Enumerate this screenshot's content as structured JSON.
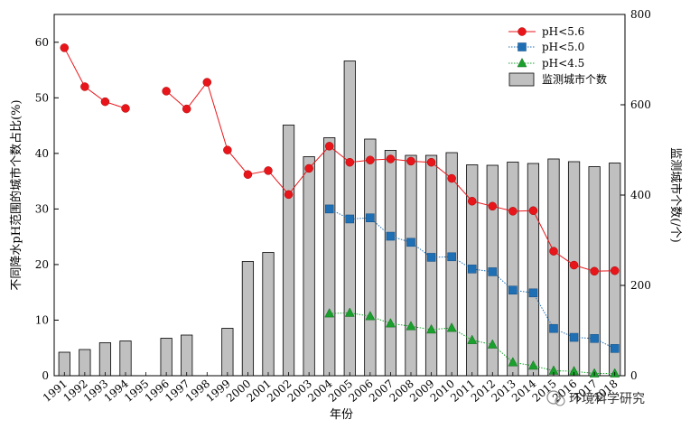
{
  "chart_data": {
    "type": "bar+line",
    "categories": [
      "1991",
      "1992",
      "1993",
      "1994",
      "1995",
      "1996",
      "1997",
      "1998",
      "1999",
      "2000",
      "2001",
      "2002",
      "2003",
      "2004",
      "2005",
      "2006",
      "2007",
      "2008",
      "2009",
      "2010",
      "2011",
      "2012",
      "2013",
      "2014",
      "2015",
      "2016",
      "2017",
      "2018"
    ],
    "xlabel": "年份",
    "ylabel_left": "不同降水pH范围的城市个数占比(%)",
    "ylabel_right": "监测城市个数(/个)",
    "ylim_left": [
      0,
      65
    ],
    "yticks_left": [
      0,
      10,
      20,
      30,
      40,
      50,
      60
    ],
    "ylim_right": [
      0,
      800
    ],
    "yticks_right": [
      0,
      200,
      400,
      600,
      800
    ],
    "bars": {
      "name": "监测城市个数",
      "color": "#c0c0c0",
      "values": [
        52,
        58,
        73,
        77,
        null,
        83,
        90,
        null,
        105,
        253,
        273,
        555,
        485,
        527,
        697,
        524,
        499,
        488,
        488,
        494,
        467,
        466,
        473,
        470,
        480,
        474,
        463,
        471
      ]
    },
    "series": [
      {
        "name": "pH<5.6",
        "marker": "circle",
        "color": "#e8161b",
        "values": [
          59,
          52,
          49.3,
          48.1,
          null,
          51.2,
          48,
          52.8,
          40.6,
          36.2,
          36.9,
          32.6,
          37.3,
          41.3,
          38.4,
          38.8,
          39,
          38.6,
          38.4,
          35.5,
          31.4,
          30.5,
          29.6,
          29.7,
          22.4,
          19.9,
          18.8,
          18.9
        ]
      },
      {
        "name": "pH<5.0",
        "marker": "square",
        "color": "#1f6fb5",
        "values": [
          null,
          null,
          null,
          null,
          null,
          null,
          null,
          null,
          null,
          null,
          null,
          null,
          null,
          30,
          28.2,
          28.4,
          25.1,
          24,
          21.3,
          21.4,
          19.2,
          18.7,
          15.4,
          14.9,
          8.5,
          6.9,
          6.7,
          4.9
        ]
      },
      {
        "name": "pH<4.5",
        "marker": "triangle",
        "color": "#1aa02c",
        "values": [
          null,
          null,
          null,
          null,
          null,
          null,
          null,
          null,
          null,
          null,
          null,
          null,
          null,
          11.2,
          11.3,
          10.7,
          9.4,
          8.9,
          8.3,
          8.6,
          6.4,
          5.6,
          2.4,
          1.8,
          0.9,
          0.8,
          0.4,
          0.4
        ]
      }
    ],
    "legend_position": "top-right"
  },
  "watermark": "环境科学研究",
  "colors": {
    "axis": "#000000",
    "bar_edge": "#000000"
  }
}
